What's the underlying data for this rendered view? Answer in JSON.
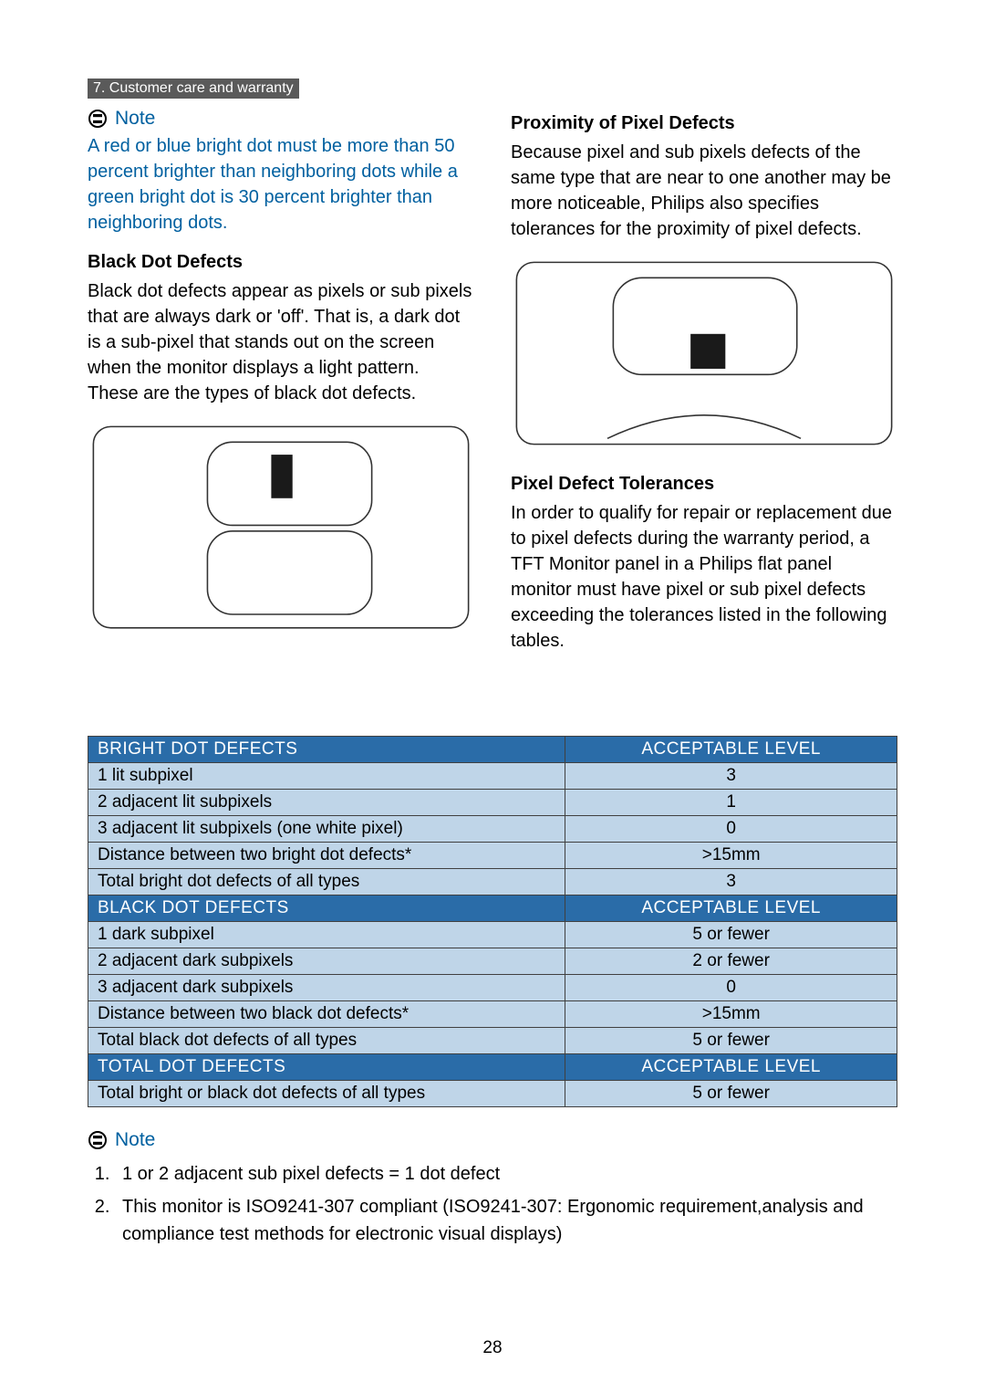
{
  "header": {
    "section_label": "7. Customer care and warranty"
  },
  "left_col": {
    "note_label": "Note",
    "note_text": "A red or blue bright dot must be more than 50 percent brighter than neighboring dots while a green bright dot is 30 percent brighter than neighboring dots.",
    "black_heading": "Black Dot Defects",
    "black_para": "Black dot defects appear as pixels or sub pixels that are always dark or 'off'. That is, a dark dot is a sub-pixel that stands out on the screen when the monitor displays a light pattern. These are the types of black dot defects."
  },
  "right_col": {
    "prox_heading": "Proximity of Pixel Defects",
    "prox_para": "Because pixel and sub pixels defects of the same type that are near to one another may be more noticeable, Philips also specifies tolerances for the proximity of pixel defects.",
    "tol_heading": "Pixel Defect Tolerances",
    "tol_para": "In order to qualify for repair or replacement due to pixel defects during the warranty period, a TFT Monitor panel in a Philips flat panel monitor must have pixel or sub pixel defects exceeding the tolerances listed in the following tables."
  },
  "tables": {
    "header_bg": "#2a6ca8",
    "row_bg": "#bfd5e8",
    "col1_width": "59%",
    "col2_width": "41%",
    "sections": [
      {
        "header_left": "BRIGHT DOT DEFECTS",
        "header_right": "ACCEPTABLE LEVEL",
        "rows": [
          [
            "1 lit subpixel",
            "3"
          ],
          [
            "2 adjacent lit subpixels",
            "1"
          ],
          [
            "3 adjacent lit subpixels (one white pixel)",
            "0"
          ],
          [
            "Distance between two bright dot defects*",
            ">15mm"
          ],
          [
            "Total bright dot defects of all types",
            "3"
          ]
        ]
      },
      {
        "header_left": "BLACK DOT DEFECTS",
        "header_right": "ACCEPTABLE LEVEL",
        "rows": [
          [
            "1 dark subpixel",
            "5 or fewer"
          ],
          [
            "2 adjacent dark subpixels",
            "2 or fewer"
          ],
          [
            "3 adjacent dark subpixels",
            "0"
          ],
          [
            "Distance between two black dot defects*",
            ">15mm"
          ],
          [
            "Total black dot defects of all types",
            "5 or fewer"
          ]
        ]
      },
      {
        "header_left": "TOTAL DOT DEFECTS",
        "header_right": "ACCEPTABLE LEVEL",
        "rows": [
          [
            "Total bright or black dot defects of all types",
            "5 or fewer"
          ]
        ]
      }
    ]
  },
  "footer": {
    "note_label": "Note",
    "items": [
      "1 or 2 adjacent sub pixel defects = 1 dot defect",
      "This monitor is ISO9241-307 compliant (ISO9241-307: Ergonomic requirement,analysis and compliance test methods for electronic visual displays)"
    ]
  },
  "page_number": "28",
  "colors": {
    "accent": "#0060a0",
    "header_gray": "#5a5a5a"
  },
  "diagram_left": {
    "outer_stroke": "#333333",
    "inner_stroke": "#333333",
    "square_fill": "#1a1a1a"
  },
  "diagram_right": {
    "outer_stroke": "#333333",
    "inner_stroke": "#333333",
    "square_fill": "#1a1a1a"
  }
}
